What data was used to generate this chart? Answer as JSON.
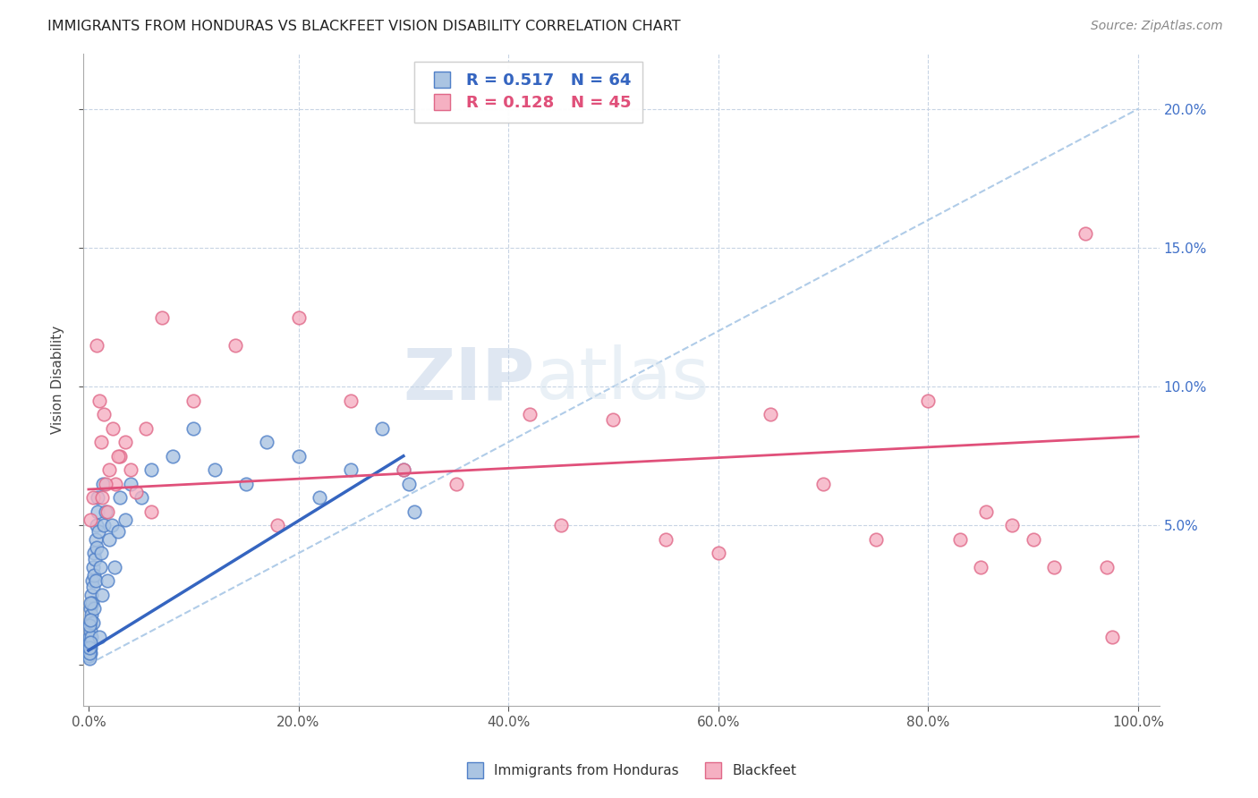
{
  "title": "IMMIGRANTS FROM HONDURAS VS BLACKFEET VISION DISABILITY CORRELATION CHART",
  "source": "Source: ZipAtlas.com",
  "ylabel": "Vision Disability",
  "legend_label1": "Immigrants from Honduras",
  "legend_label2": "Blackfeet",
  "r1": 0.517,
  "n1": 64,
  "r2": 0.128,
  "n2": 45,
  "color1": "#aac4e2",
  "color2": "#f5b0c2",
  "edge_color1": "#5080c8",
  "edge_color2": "#e06888",
  "line_color1": "#3565c0",
  "line_color2": "#e0507a",
  "dashed_color": "#b0cce8",
  "grid_color": "#c8d4e4",
  "background_color": "#ffffff",
  "watermark_zip": "ZIP",
  "watermark_atlas": "atlas",
  "blue_trend": [
    0,
    0.5,
    30,
    7.5
  ],
  "pink_trend": [
    0,
    6.3,
    100,
    8.2
  ],
  "ref_line": [
    0,
    0,
    100,
    20
  ],
  "blue_x": [
    0.05,
    0.08,
    0.1,
    0.12,
    0.14,
    0.16,
    0.18,
    0.2,
    0.22,
    0.25,
    0.28,
    0.3,
    0.33,
    0.36,
    0.4,
    0.43,
    0.46,
    0.5,
    0.53,
    0.56,
    0.6,
    0.65,
    0.7,
    0.75,
    0.8,
    0.85,
    0.9,
    0.95,
    1.0,
    1.1,
    1.2,
    1.3,
    1.4,
    1.5,
    1.6,
    1.8,
    2.0,
    2.2,
    2.5,
    2.8,
    3.0,
    3.5,
    4.0,
    5.0,
    6.0,
    8.0,
    10.0,
    12.0,
    15.0,
    17.0,
    20.0,
    22.0,
    25.0,
    28.0,
    30.0,
    30.5,
    31.0,
    0.07,
    0.09,
    0.11,
    0.13,
    0.15,
    0.18,
    0.22
  ],
  "blue_y": [
    0.3,
    0.5,
    0.8,
    1.0,
    1.2,
    0.6,
    1.5,
    2.0,
    0.4,
    1.8,
    2.5,
    1.0,
    3.0,
    2.2,
    3.5,
    1.5,
    2.8,
    4.0,
    3.2,
    2.0,
    3.8,
    4.5,
    3.0,
    5.0,
    4.2,
    6.0,
    5.5,
    4.8,
    1.0,
    3.5,
    4.0,
    2.5,
    6.5,
    5.0,
    5.5,
    3.0,
    4.5,
    5.0,
    3.5,
    4.8,
    6.0,
    5.2,
    6.5,
    6.0,
    7.0,
    7.5,
    8.5,
    7.0,
    6.5,
    8.0,
    7.5,
    6.0,
    7.0,
    8.5,
    7.0,
    6.5,
    5.5,
    0.2,
    0.4,
    0.6,
    1.4,
    1.6,
    0.8,
    2.2
  ],
  "pink_x": [
    0.2,
    0.4,
    0.8,
    1.0,
    1.2,
    1.5,
    1.8,
    2.0,
    2.3,
    2.6,
    3.0,
    3.5,
    4.0,
    4.5,
    5.5,
    7.0,
    10.0,
    14.0,
    20.0,
    25.0,
    30.0,
    35.0,
    42.0,
    50.0,
    55.0,
    65.0,
    70.0,
    75.0,
    80.0,
    83.0,
    85.0,
    88.0,
    90.0,
    92.0,
    95.0,
    97.0,
    1.3,
    1.6,
    2.8,
    6.0,
    18.0,
    45.0,
    60.0,
    85.5,
    97.5
  ],
  "pink_y": [
    5.2,
    6.0,
    11.5,
    9.5,
    8.0,
    9.0,
    5.5,
    7.0,
    8.5,
    6.5,
    7.5,
    8.0,
    7.0,
    6.2,
    8.5,
    12.5,
    9.5,
    11.5,
    12.5,
    9.5,
    7.0,
    6.5,
    9.0,
    8.8,
    4.5,
    9.0,
    6.5,
    4.5,
    9.5,
    4.5,
    3.5,
    5.0,
    4.5,
    3.5,
    15.5,
    3.5,
    6.0,
    6.5,
    7.5,
    5.5,
    5.0,
    5.0,
    4.0,
    5.5,
    1.0
  ]
}
